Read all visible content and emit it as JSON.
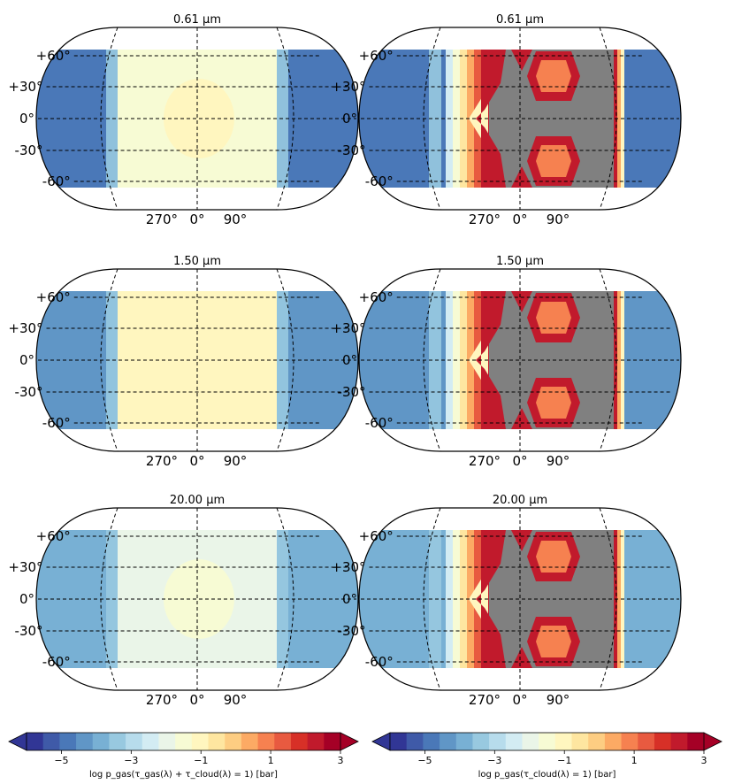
{
  "chart_data": [
    {
      "type": "map",
      "title": "0.61 μm",
      "projection": "equal-earth",
      "lat_ticks": [
        "+60°",
        "+30°",
        "0°",
        "-30°",
        "-60°"
      ],
      "lon_ticks": [
        "270°",
        "0°",
        "90°"
      ],
      "coverage_lat": [
        -60,
        60
      ],
      "dayside_value": -1.5,
      "nightside_value": -5,
      "hotspot_value": -1.2
    },
    {
      "type": "map",
      "title": "0.61 μm",
      "projection": "equal-earth",
      "lat_ticks": [
        "+60°",
        "+30°",
        "0°",
        "-30°",
        "-60°"
      ],
      "lon_ticks": [
        "270°",
        "0°",
        "90°"
      ],
      "coverage_lat": [
        -60,
        60
      ],
      "nightside_value": -5,
      "no_data_region": "dayside",
      "cloud_edge_value": 2.5
    },
    {
      "type": "map",
      "title": "1.50 μm",
      "projection": "equal-earth",
      "lat_ticks": [
        "+60°",
        "+30°",
        "0°",
        "-30°",
        "-60°"
      ],
      "lon_ticks": [
        "270°",
        "0°",
        "90°"
      ],
      "coverage_lat": [
        -60,
        60
      ],
      "dayside_value": -1.2,
      "nightside_value": -4.5
    },
    {
      "type": "map",
      "title": "1.50 μm",
      "projection": "equal-earth",
      "lat_ticks": [
        "+60°",
        "+30°",
        "0°",
        "-30°",
        "-60°"
      ],
      "lon_ticks": [
        "270°",
        "0°",
        "90°"
      ],
      "coverage_lat": [
        -60,
        60
      ],
      "nightside_value": -4.5,
      "no_data_region": "dayside",
      "cloud_edge_value": 2.5
    },
    {
      "type": "map",
      "title": "20.00 μm",
      "projection": "equal-earth",
      "lat_ticks": [
        "+60°",
        "+30°",
        "0°",
        "-30°",
        "-60°"
      ],
      "lon_ticks": [
        "270°",
        "0°",
        "90°"
      ],
      "coverage_lat": [
        -60,
        60
      ],
      "dayside_value": -2,
      "nightside_value": -4,
      "hotspot_value": -1.4
    },
    {
      "type": "map",
      "title": "20.00 μm",
      "projection": "equal-earth",
      "lat_ticks": [
        "+60°",
        "+30°",
        "0°",
        "-30°",
        "-60°"
      ],
      "lon_ticks": [
        "270°",
        "0°",
        "90°"
      ],
      "coverage_lat": [
        -60,
        60
      ],
      "nightside_value": -4,
      "no_data_region": "dayside",
      "cloud_edge_value": 2.5
    }
  ],
  "colorbars": [
    {
      "label": "log p_gas(τ_gas(λ) + τ_cloud(λ) = 1) [bar]",
      "range": [
        -6,
        3
      ],
      "ticks": [
        "−5",
        "−3",
        "−1",
        "1",
        "3"
      ],
      "extend": "both"
    },
    {
      "label": "log p_gas(τ_cloud(λ) = 1) [bar]",
      "range": [
        -6,
        3
      ],
      "ticks": [
        "−5",
        "−3",
        "−1",
        "1",
        "3"
      ],
      "extend": "both"
    }
  ],
  "colors": {
    "nodata": "#808080",
    "levels": [
      "#313695",
      "#3f5aa8",
      "#4a78b8",
      "#6096c6",
      "#78b0d4",
      "#98c9e0",
      "#b7dcec",
      "#d3ecf3",
      "#eaf5e8",
      "#f7fbd4",
      "#fff6bf",
      "#fee6a0",
      "#fdcd82",
      "#fcaa64",
      "#f68150",
      "#e85a40",
      "#d73027",
      "#c11a2c",
      "#a50026"
    ]
  }
}
